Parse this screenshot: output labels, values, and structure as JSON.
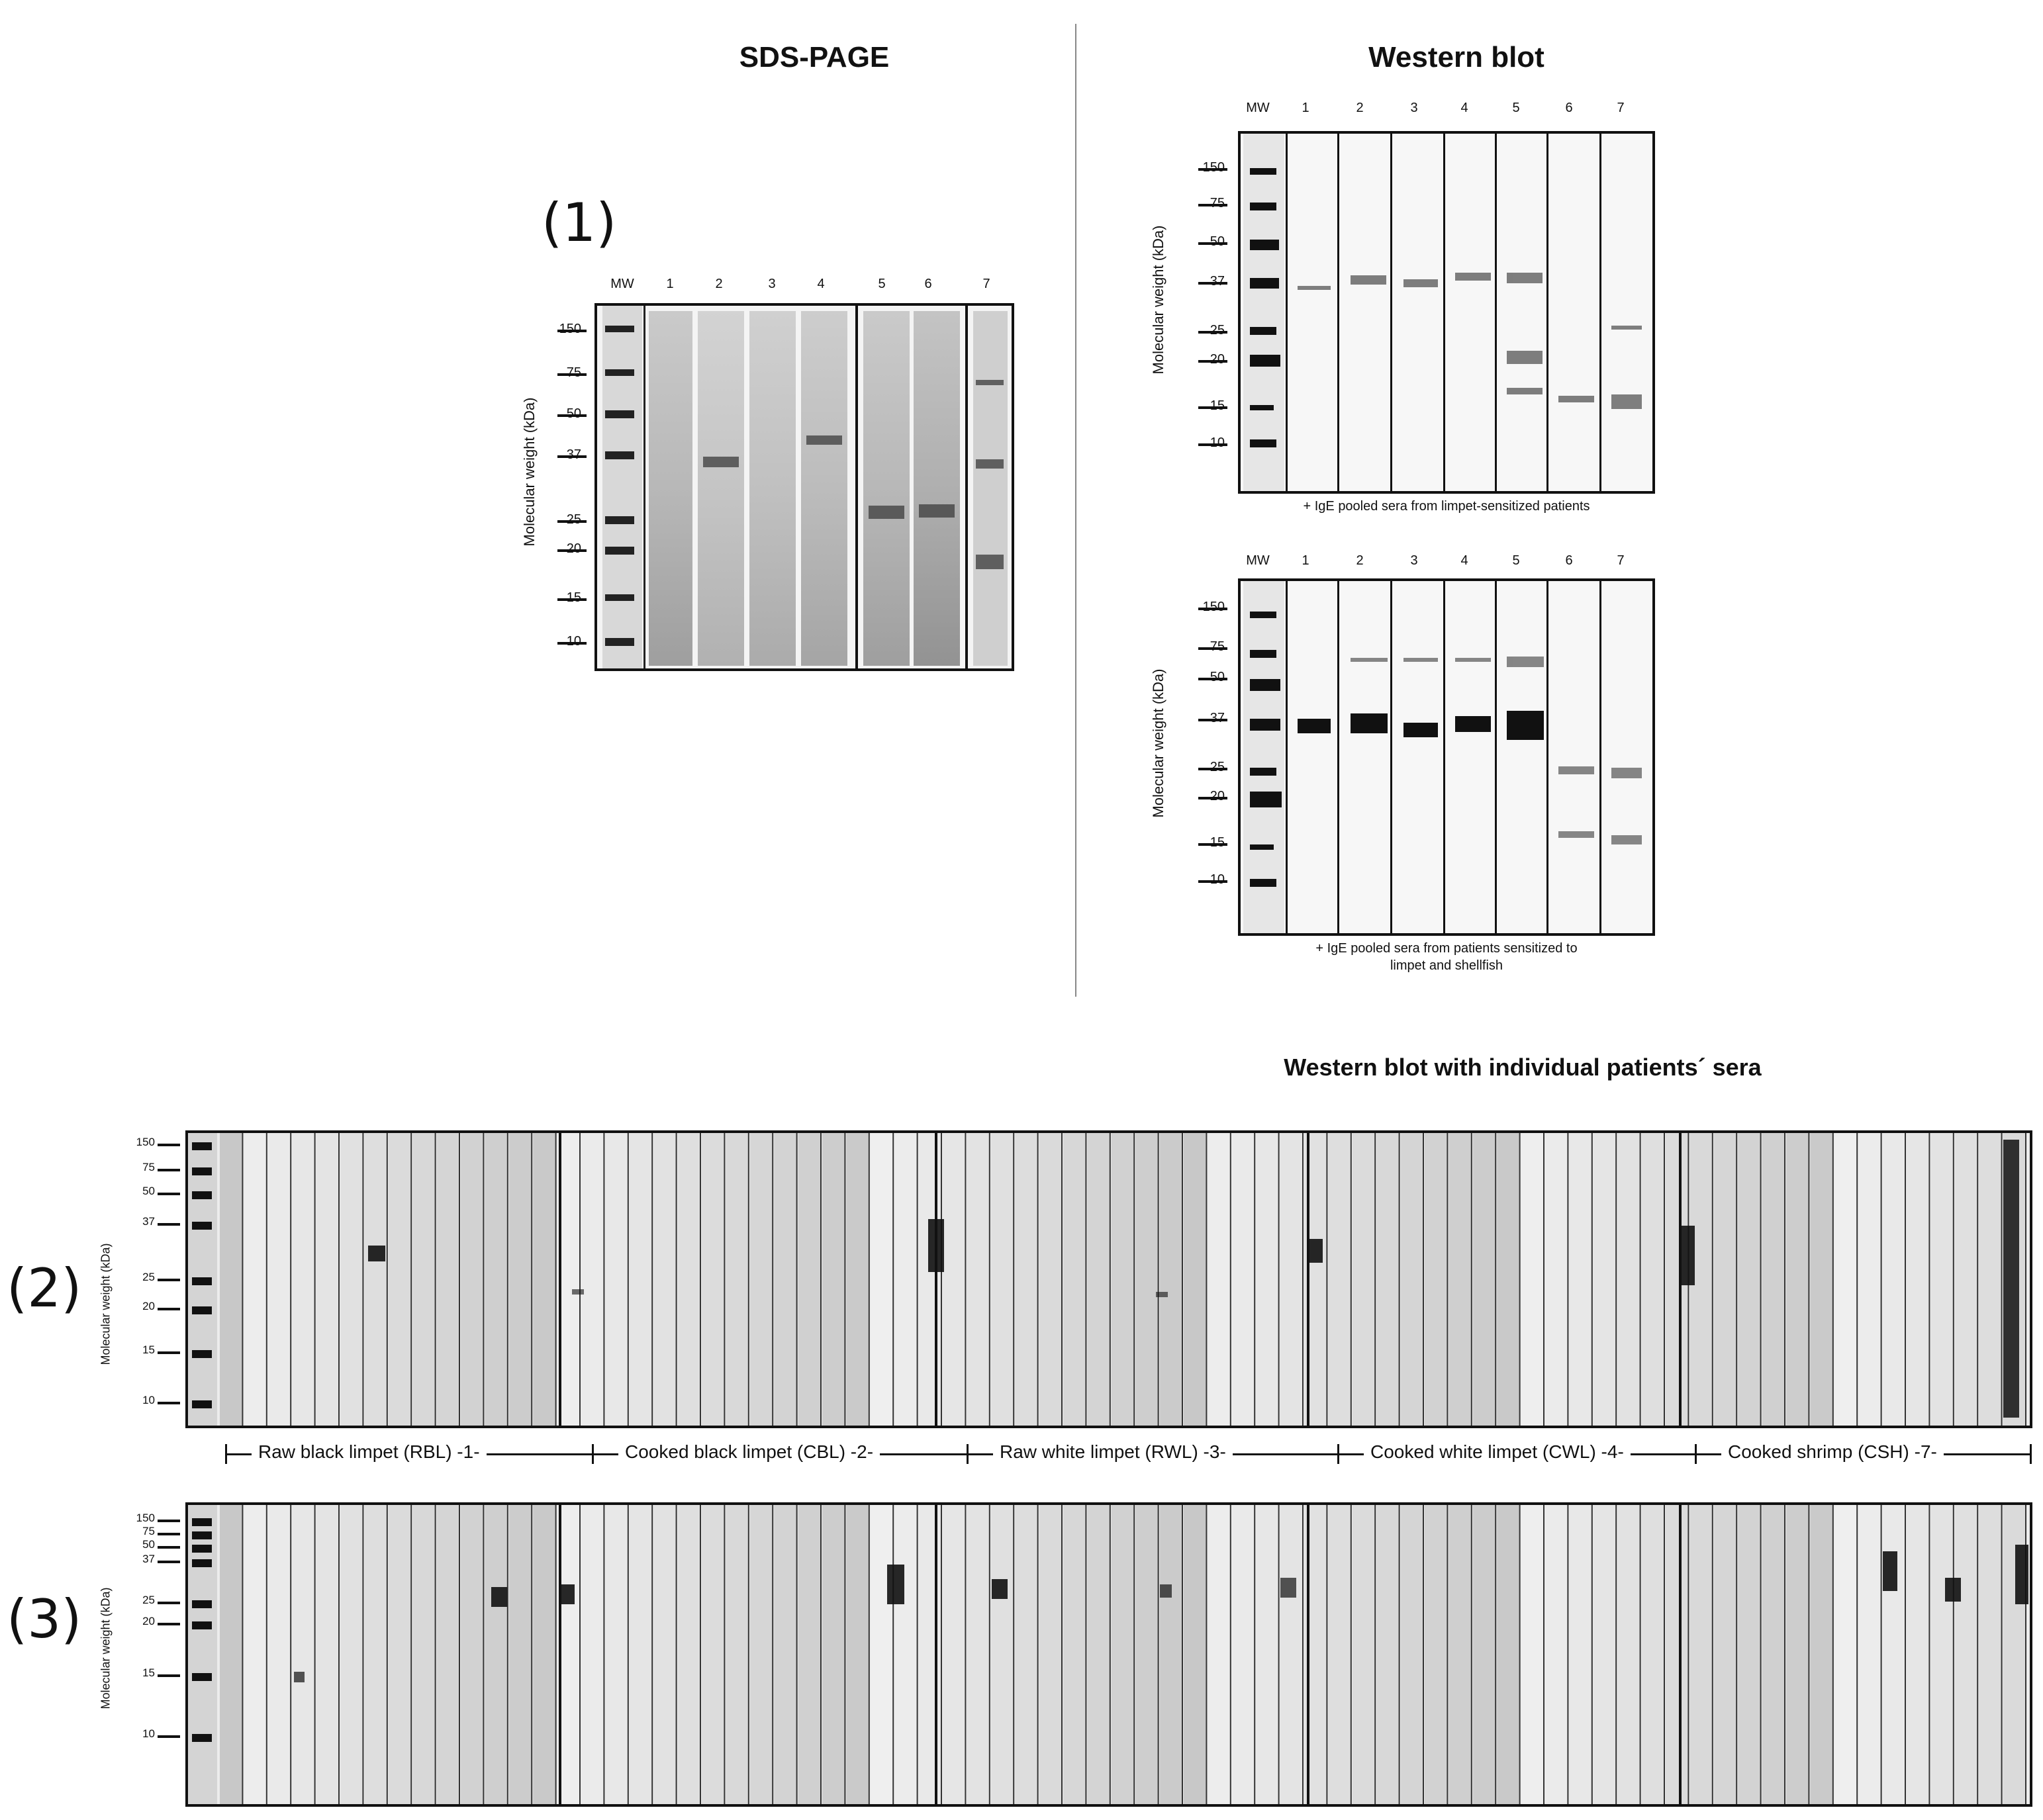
{
  "sds_page": {
    "title": "SDS-PAGE",
    "panel_label": "(1)",
    "y_axis_label": "Molecular weight (kDa)",
    "lanes": [
      "MW",
      "1",
      "2",
      "3",
      "4",
      "5",
      "6",
      "7"
    ],
    "mw_markers": [
      "150",
      "75",
      "50",
      "37",
      "25",
      "20",
      "15",
      "10"
    ]
  },
  "western_blot": {
    "title": "Western blot",
    "top": {
      "y_axis_label": "Molecular weight (kDa)",
      "lanes": [
        "MW",
        "1",
        "2",
        "3",
        "4",
        "5",
        "6",
        "7"
      ],
      "mw_markers": [
        "150",
        "75",
        "50",
        "37",
        "25",
        "20",
        "15",
        "10"
      ],
      "caption": "+ IgE pooled sera from limpet-sensitized patients"
    },
    "bottom": {
      "y_axis_label": "Molecular weight (kDa)",
      "lanes": [
        "MW",
        "1",
        "2",
        "3",
        "4",
        "5",
        "6",
        "7"
      ],
      "mw_markers": [
        "150",
        "75",
        "50",
        "37",
        "25",
        "20",
        "15",
        "10"
      ],
      "caption_line1": "+ IgE pooled sera from patients sensitized to",
      "caption_line2": "limpet and shellfish"
    }
  },
  "individual": {
    "title": "Western blot with individual patients´ sera",
    "panel2_label": "(2)",
    "panel3_label": "(3)",
    "y_axis_label": "Molecular weight (kDa)",
    "mw_markers": [
      "150",
      "75",
      "50",
      "37",
      "25",
      "20",
      "15",
      "10"
    ],
    "groups": [
      {
        "label": "Raw black limpet (RBL) -1-"
      },
      {
        "label": "Cooked black limpet (CBL) -2-"
      },
      {
        "label": "Raw white limpet (RWL) -3-"
      },
      {
        "label": "Cooked white limpet (CWL) -4-"
      },
      {
        "label": "Cooked shrimp (CSH) -7-"
      }
    ]
  }
}
